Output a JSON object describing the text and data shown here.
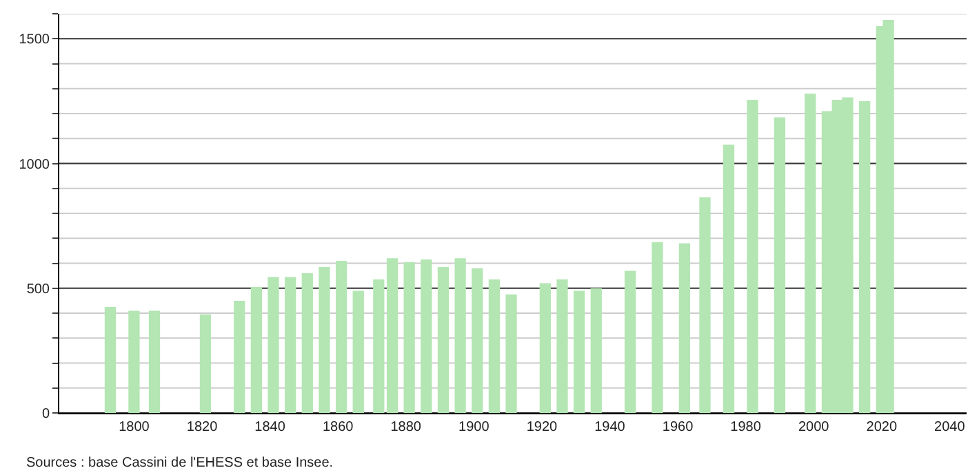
{
  "chart_data": {
    "type": "bar",
    "x": [
      1793,
      1800,
      1806,
      1821,
      1831,
      1836,
      1841,
      1846,
      1851,
      1856,
      1861,
      1866,
      1872,
      1876,
      1881,
      1886,
      1891,
      1896,
      1901,
      1906,
      1911,
      1921,
      1926,
      1931,
      1936,
      1946,
      1954,
      1962,
      1968,
      1975,
      1982,
      1990,
      1999,
      2004,
      2007,
      2010,
      2015,
      2020,
      2022
    ],
    "values": [
      425,
      410,
      410,
      395,
      450,
      505,
      545,
      545,
      560,
      585,
      610,
      490,
      535,
      620,
      605,
      615,
      585,
      620,
      580,
      535,
      475,
      520,
      535,
      490,
      500,
      570,
      685,
      680,
      865,
      1075,
      1255,
      1185,
      1280,
      1210,
      1255,
      1265,
      1250,
      1550,
      1575
    ],
    "color": "#b3e6b3",
    "xlim": [
      1778,
      2045
    ],
    "xticks": [
      1800,
      1820,
      1840,
      1860,
      1880,
      1900,
      1920,
      1940,
      1960,
      1980,
      2000,
      2020,
      2040
    ],
    "ylim": [
      0,
      1600
    ],
    "yticks": [
      0,
      {
        "value": 100,
        "label": null
      },
      {
        "value": 200,
        "label": null
      },
      {
        "value": 300,
        "label": null
      },
      {
        "value": 400,
        "label": null
      },
      500,
      {
        "value": 600,
        "label": null
      },
      {
        "value": 700,
        "label": null
      },
      {
        "value": 800,
        "label": null
      },
      {
        "value": 900,
        "label": null
      },
      1000,
      {
        "value": 1100,
        "label": null
      },
      {
        "value": 1200,
        "label": null
      },
      {
        "value": 1300,
        "label": null
      },
      {
        "value": 1400,
        "label": null
      },
      1500,
      {
        "value": 1600,
        "label": null
      }
    ],
    "grid": "y",
    "annotations": [
      "Sources : base Cassini de l'EHESS et base Insee."
    ]
  }
}
